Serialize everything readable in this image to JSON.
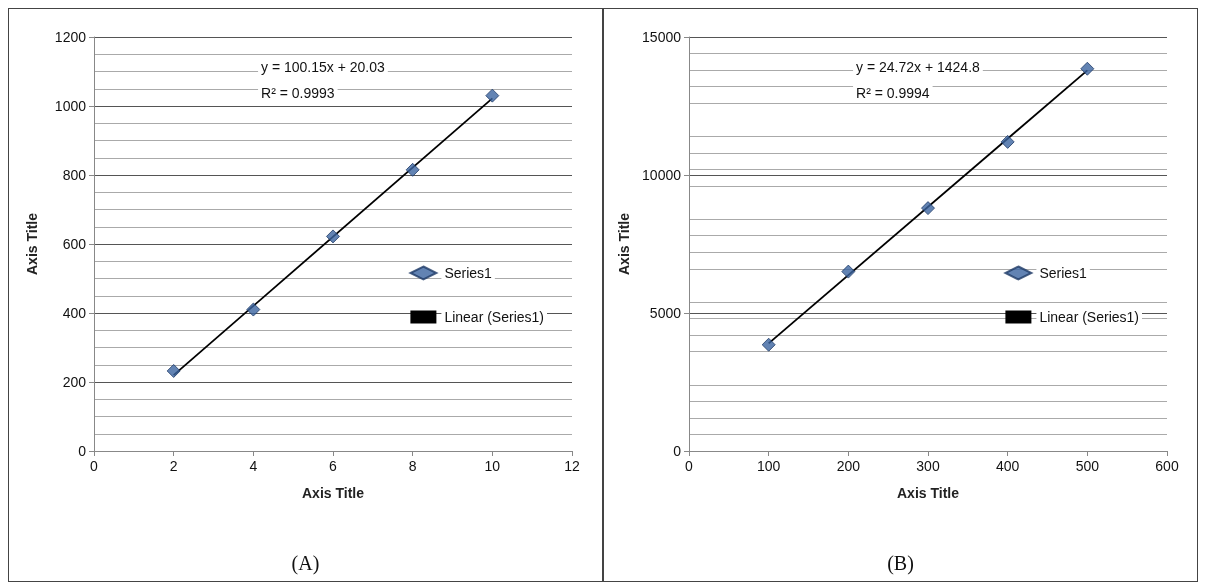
{
  "chart_data": [
    {
      "type": "scatter",
      "xlabel": "Axis Title",
      "ylabel": "Axis Title",
      "xlim": [
        0,
        12
      ],
      "xticks": [
        0,
        2,
        4,
        6,
        8,
        10,
        12
      ],
      "ylim": [
        0,
        1200
      ],
      "yticks": [
        0,
        200,
        400,
        600,
        800,
        1000,
        1200
      ],
      "grid": "y",
      "legend": "right",
      "annotations": [
        "y = 100.15x + 20.03",
        "R² = 0.9993",
        "(A)"
      ],
      "series": [
        {
          "name": "Series1",
          "color": "#3b64a0",
          "marker": "diamond",
          "x": [
            2,
            4,
            6,
            8,
            10
          ],
          "values": [
            232,
            410,
            622,
            815,
            1030
          ]
        },
        {
          "name": "Linear (Series1)",
          "type": "line",
          "color": "#000000",
          "x": [
            2,
            10
          ],
          "values": [
            220,
            1022
          ]
        }
      ]
    },
    {
      "type": "scatter",
      "xlabel": "Axis Title",
      "ylabel": "Axis Title",
      "xlim": [
        0,
        600
      ],
      "xticks": [
        0,
        100,
        200,
        300,
        400,
        500,
        600
      ],
      "ylim": [
        0,
        15000
      ],
      "yticks": [
        0,
        5000,
        10000,
        15000
      ],
      "grid": "y",
      "legend": "right",
      "annotations": [
        "y = 24.72x + 1424.8",
        "R² = 0.9994",
        "(B)"
      ],
      "series": [
        {
          "name": "Series1",
          "color": "#3b64a0",
          "marker": "diamond",
          "x": [
            100,
            200,
            300,
            400,
            500
          ],
          "values": [
            3850,
            6500,
            8800,
            11200,
            13850
          ]
        },
        {
          "name": "Linear (Series1)",
          "type": "line",
          "color": "#000000",
          "x": [
            100,
            500
          ],
          "values": [
            3900,
            13790
          ]
        }
      ]
    }
  ]
}
